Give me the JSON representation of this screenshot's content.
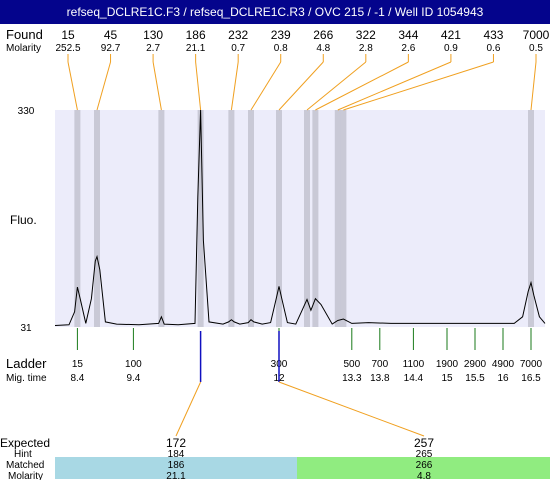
{
  "title": "refseq_DCLRE1C.F3 / refseq_DCLRE1C.R3 / OVC 215 / -1 / Well ID 1054943",
  "labels": {
    "found": "Found",
    "molarity": "Molarity",
    "fluo": "Fluo.",
    "ladder": "Ladder",
    "mig_time": "Mig. time",
    "expected": "Expected",
    "hint": "Hint",
    "matched": "Matched",
    "molarity_bottom": "Molarity"
  },
  "colors": {
    "title_bg": "#04048c",
    "plot_bg": "#ececfa",
    "peak_band": "#c9c9d6",
    "connector": "#f0a020",
    "ladder_tick": "#1a7a1a",
    "marker_tick": "#1010c0",
    "bar_left": "#a8d8e4",
    "bar_right": "#90ec80"
  },
  "chart_data": {
    "type": "line",
    "title": "refseq_DCLRE1C.F3 / refseq_DCLRE1C.R3 / OVC 215 / -1 / Well ID 1054943",
    "ylabel": "Fluo.",
    "ylim": [
      31,
      330
    ],
    "y_ticks": [
      "330",
      "31"
    ],
    "xlim": [
      8.0,
      16.75
    ],
    "x_unit": "migration time",
    "found_peaks": [
      {
        "size": "15",
        "molarity": "252.5",
        "mig": 8.4
      },
      {
        "size": "45",
        "molarity": "92.7",
        "mig": 8.75
      },
      {
        "size": "130",
        "molarity": "2.7",
        "mig": 9.9
      },
      {
        "size": "186",
        "molarity": "21.1",
        "mig": 10.6
      },
      {
        "size": "232",
        "molarity": "0.7",
        "mig": 11.15
      },
      {
        "size": "239",
        "molarity": "0.8",
        "mig": 11.5
      },
      {
        "size": "266",
        "molarity": "4.8",
        "mig": 12.0
      },
      {
        "size": "322",
        "molarity": "2.8",
        "mig": 12.5
      },
      {
        "size": "344",
        "molarity": "2.6",
        "mig": 12.65
      },
      {
        "size": "421",
        "molarity": "0.9",
        "mig": 13.05
      },
      {
        "size": "433",
        "molarity": "0.6",
        "mig": 13.15
      },
      {
        "size": "7000",
        "molarity": "0.5",
        "mig": 16.5
      }
    ],
    "ladder": [
      {
        "size": "15",
        "mig": "8.4"
      },
      {
        "size": "100",
        "mig": "9.4"
      },
      {
        "size": "300",
        "mig": "12"
      },
      {
        "size": "500",
        "mig": "13.3"
      },
      {
        "size": "700",
        "mig": "13.8"
      },
      {
        "size": "1100",
        "mig": "14.4"
      },
      {
        "size": "1900",
        "mig": "15"
      },
      {
        "size": "2900",
        "mig": "15.5"
      },
      {
        "size": "4900",
        "mig": "16"
      },
      {
        "size": "7000",
        "mig": "16.5"
      }
    ],
    "trace": {
      "x": [
        8.0,
        8.25,
        8.35,
        8.4,
        8.45,
        8.55,
        8.65,
        8.72,
        8.75,
        8.8,
        8.9,
        9.1,
        9.5,
        9.85,
        9.9,
        9.95,
        10.2,
        10.5,
        10.55,
        10.6,
        10.65,
        10.75,
        11.0,
        11.1,
        11.15,
        11.2,
        11.3,
        11.45,
        11.5,
        11.55,
        11.7,
        11.85,
        11.95,
        12.0,
        12.05,
        12.15,
        12.3,
        12.4,
        12.5,
        12.57,
        12.65,
        12.75,
        12.95,
        13.05,
        13.15,
        13.3,
        13.6,
        14.0,
        14.4,
        15.0,
        15.5,
        16.0,
        16.2,
        16.35,
        16.45,
        16.5,
        16.55,
        16.65,
        16.75
      ],
      "y": [
        33,
        34,
        52,
        86,
        70,
        36,
        70,
        122,
        128,
        110,
        38,
        35,
        34,
        36,
        45,
        35,
        34,
        36,
        210,
        330,
        150,
        38,
        35,
        38,
        41,
        38,
        35,
        37,
        41,
        38,
        35,
        37,
        70,
        87,
        70,
        37,
        35,
        52,
        69,
        54,
        70,
        62,
        35,
        40,
        42,
        36,
        37,
        36,
        36,
        36,
        36,
        36,
        36,
        45,
        80,
        92,
        75,
        45,
        36
      ]
    },
    "expected": [
      {
        "expected": "172",
        "hint": "184",
        "matched": "186",
        "molarity": "21.1",
        "mig": 10.6
      },
      {
        "expected": "257",
        "hint": "265",
        "matched": "266",
        "molarity": "4.8",
        "mig": 12.0
      }
    ]
  }
}
